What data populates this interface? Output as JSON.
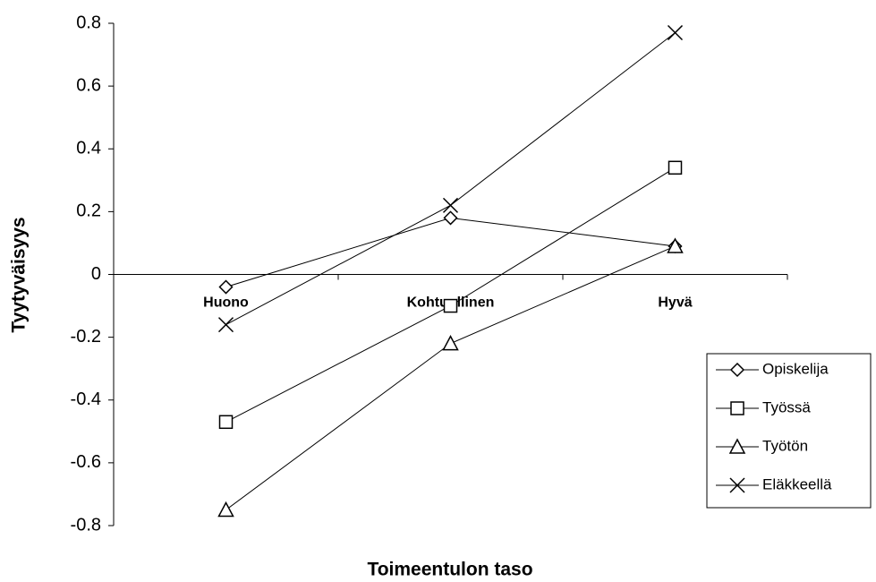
{
  "chart_data": {
    "type": "line",
    "ylabel": "Tyytyväisyys",
    "xlabel": "Toimeentulon taso",
    "categories": [
      "Huono",
      "Kohtuullinen",
      "Hyvä"
    ],
    "series": [
      {
        "name": "Opiskelija",
        "color": "#000000",
        "marker": "diamond",
        "values": [
          -0.04,
          0.18,
          0.09
        ]
      },
      {
        "name": "Työssä",
        "color": "#000000",
        "marker": "square",
        "values": [
          -0.47,
          -0.1,
          0.34
        ]
      },
      {
        "name": "Työtön",
        "color": "#000000",
        "marker": "triangle",
        "values": [
          -0.75,
          -0.22,
          0.09
        ]
      },
      {
        "name": "Eläkkeellä",
        "color": "#000000",
        "marker": "x",
        "values": [
          -0.16,
          0.22,
          0.77
        ]
      }
    ],
    "ylim": [
      -0.8,
      0.8
    ],
    "yticks": [
      -0.8,
      -0.6,
      -0.4,
      -0.2,
      0,
      0.2,
      0.4,
      0.6,
      0.8
    ],
    "legend": "right"
  }
}
